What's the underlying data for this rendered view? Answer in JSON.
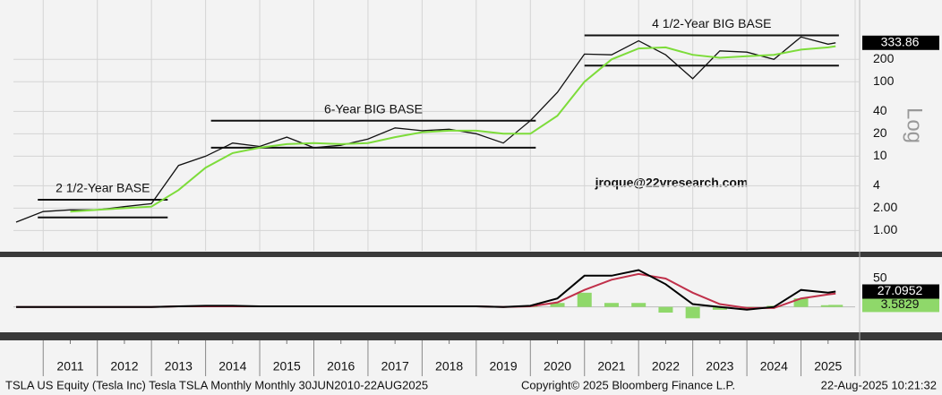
{
  "chart_data": [
    {
      "type": "line",
      "log_scale": true,
      "y_axis_label": "Log",
      "watermark": "jroque@22vresearch.com",
      "xlim": [
        2010.45,
        2026.0
      ],
      "ylim": [
        0.55,
        900
      ],
      "yticks": [
        {
          "value": 1,
          "label": "1.00"
        },
        {
          "value": 2,
          "label": "2.00"
        },
        4,
        10,
        20,
        40,
        100,
        200
      ],
      "grid": true,
      "x": [
        2010.5,
        2011,
        2011.5,
        2012,
        2012.5,
        2013,
        2013.5,
        2014,
        2014.5,
        2015,
        2015.5,
        2016,
        2016.5,
        2017,
        2017.5,
        2018,
        2018.5,
        2019,
        2019.5,
        2020,
        2020.5,
        2021,
        2021.5,
        2022,
        2022.5,
        2023,
        2023.5,
        2024,
        2024.5,
        2025,
        2025.5,
        2025.64
      ],
      "series": [
        {
          "color": "#111111",
          "values": [
            1.3,
            1.8,
            1.9,
            1.9,
            2.1,
            2.3,
            7.5,
            10,
            15,
            13.5,
            18,
            13,
            14,
            17,
            24,
            22,
            23,
            20,
            15,
            30,
            72,
            235,
            230,
            355,
            230,
            110,
            260,
            250,
            200,
            400,
            320,
            333.86
          ]
        },
        {
          "color": "#7ddc3a",
          "values": [
            null,
            null,
            1.8,
            1.9,
            2.0,
            2.1,
            3.5,
            7,
            11,
            13,
            14.5,
            15,
            14.5,
            15,
            18,
            21,
            22,
            22,
            20,
            20,
            35,
            100,
            200,
            280,
            290,
            230,
            210,
            220,
            230,
            270,
            290,
            300
          ]
        }
      ],
      "annotations": [
        {
          "text": "2 1/2-Year BASE",
          "x": [
            2010.9,
            2013.3
          ],
          "levels": [
            1.5,
            2.6
          ]
        },
        {
          "text": "6-Year BIG BASE",
          "x": [
            2014.1,
            2020.1
          ],
          "levels": [
            13,
            30
          ]
        },
        {
          "text": "4 1/2-Year BIG BASE",
          "x": [
            2021.0,
            2025.7
          ],
          "levels": [
            165,
            420
          ]
        }
      ]
    },
    {
      "type": "line",
      "xlim": [
        2010.45,
        2026.0
      ],
      "ylim": [
        -40,
        80
      ],
      "yticks": [
        50
      ],
      "x": [
        2010.5,
        2011,
        2011.5,
        2012,
        2012.5,
        2013,
        2013.5,
        2014,
        2014.5,
        2015,
        2015.5,
        2016,
        2016.5,
        2017,
        2017.5,
        2018,
        2018.5,
        2019,
        2019.5,
        2020,
        2020.5,
        2021,
        2021.5,
        2022,
        2022.5,
        2023,
        2023.5,
        2024,
        2024.5,
        2025,
        2025.5,
        2025.64
      ],
      "xticks": [
        {
          "value": 2011.5,
          "label": "2011"
        },
        {
          "value": 2012.5,
          "label": "2012"
        },
        {
          "value": 2013.5,
          "label": "2013"
        },
        {
          "value": 2014.5,
          "label": "2014"
        },
        {
          "value": 2015.5,
          "label": "2015"
        },
        {
          "value": 2016.5,
          "label": "2016"
        },
        {
          "value": 2017.5,
          "label": "2017"
        },
        {
          "value": 2018.5,
          "label": "2018"
        },
        {
          "value": 2019.5,
          "label": "2019"
        },
        {
          "value": 2020.5,
          "label": "2020"
        },
        {
          "value": 2021.5,
          "label": "2021"
        },
        {
          "value": 2022.5,
          "label": "2022"
        },
        {
          "value": 2023.5,
          "label": "2023"
        },
        {
          "value": 2024.5,
          "label": "2024"
        },
        {
          "value": 2025.5,
          "label": "2025"
        }
      ],
      "series": [
        {
          "type": "bar",
          "color": "#8fd86a",
          "values": [
            0,
            0,
            0,
            0,
            0,
            0,
            0,
            0,
            0,
            0,
            0,
            0,
            0,
            0,
            0,
            0,
            0,
            0,
            0,
            1,
            7,
            25,
            7,
            7,
            -10,
            -20,
            -5,
            -3,
            2,
            15,
            3,
            3.5829
          ]
        },
        {
          "type": "line",
          "color": "#c0304a",
          "values": [
            0,
            0,
            0,
            0,
            0,
            0,
            1,
            1,
            1,
            1,
            1,
            1,
            1,
            1,
            1,
            1,
            1,
            1,
            0,
            1,
            8,
            30,
            48,
            58,
            50,
            25,
            5,
            -2,
            -2,
            15,
            22,
            23.5
          ]
        },
        {
          "type": "line",
          "color": "#000000",
          "values": [
            0,
            0,
            0,
            0,
            0,
            0,
            1,
            2,
            2,
            1,
            1,
            1,
            1,
            1,
            1,
            1,
            1,
            1,
            0,
            2,
            15,
            55,
            55,
            65,
            40,
            5,
            0,
            -5,
            0,
            30,
            25,
            27.0952
          ]
        }
      ]
    }
  ],
  "footer": {
    "left": "TSLA US Equity (Tesla Inc) Tesla TSLA Monthly  Monthly 30JUN2010-22AUG2025",
    "center": "Copyright© 2025 Bloomberg Finance L.P.",
    "right": "22-Aug-2025 10:21:32"
  }
}
